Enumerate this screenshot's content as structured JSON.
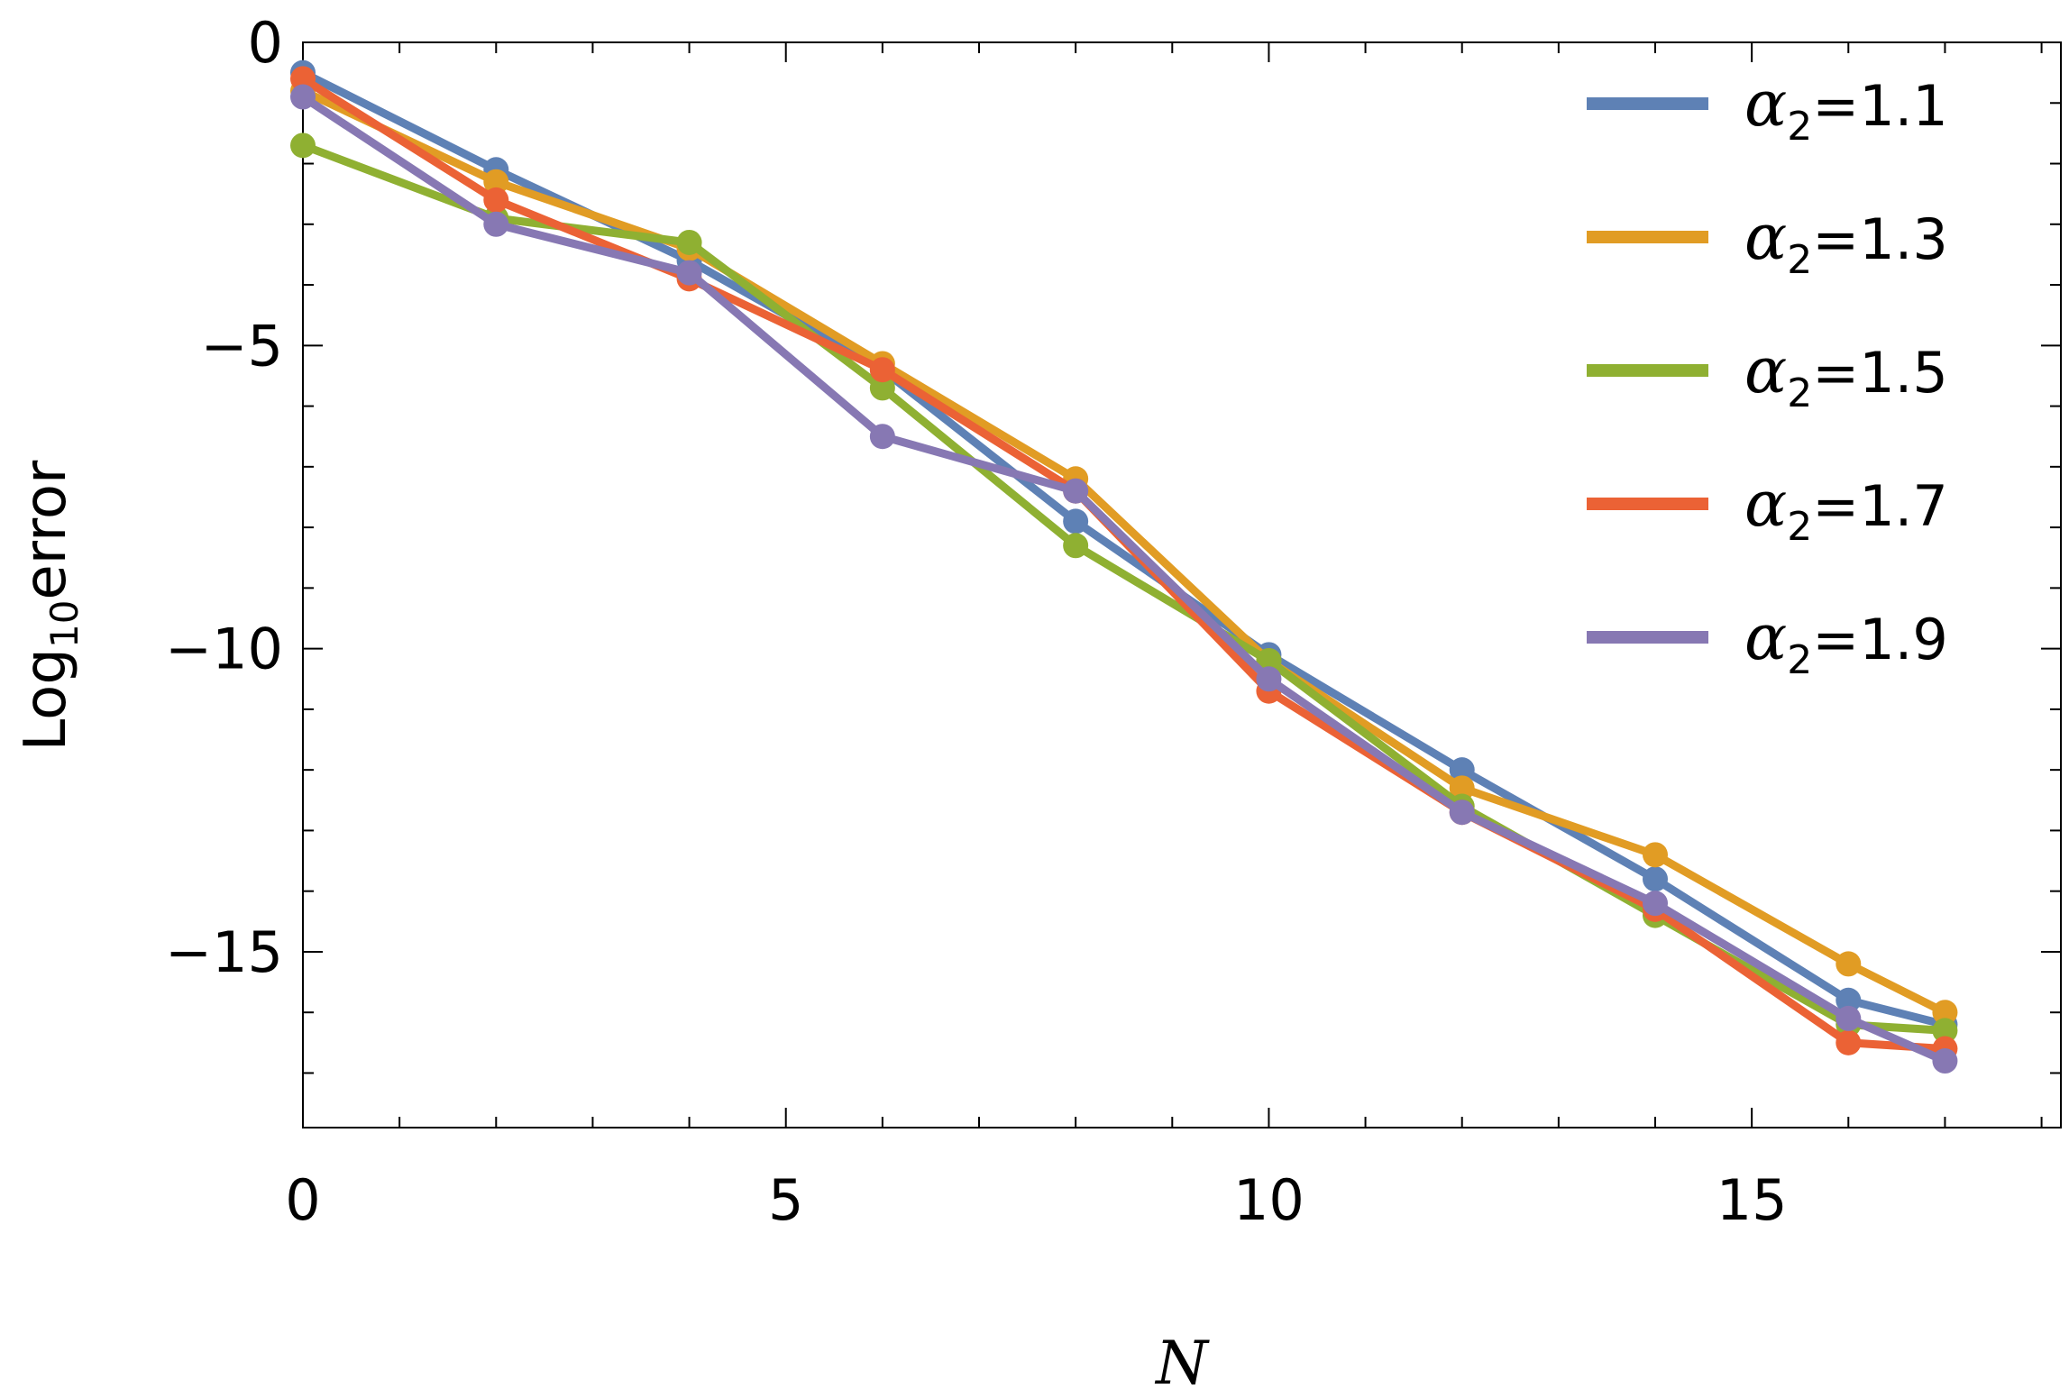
{
  "chart_data": {
    "type": "line",
    "title": "",
    "xlabel": "N",
    "ylabel": {
      "prefix": "Log",
      "sub": "10",
      "suffix": "error"
    },
    "xlim": [
      0,
      18.2
    ],
    "ylim": [
      -17.9,
      0
    ],
    "x_ticks": [
      0,
      5,
      10,
      15
    ],
    "y_ticks": [
      0,
      -5,
      -10,
      -15
    ],
    "grid": false,
    "legend_position": "top-right",
    "x": [
      0,
      2,
      4,
      6,
      8,
      10,
      12,
      14,
      16,
      17
    ],
    "series": [
      {
        "name": "α2=1.1",
        "symbol": "α",
        "sub": "2",
        "value_text": "=1.1",
        "color": "#5e81b5",
        "values": [
          -0.5,
          -2.1,
          -3.6,
          -5.4,
          -7.9,
          -10.1,
          -12.0,
          -13.8,
          -15.8,
          -16.2
        ]
      },
      {
        "name": "α2=1.3",
        "symbol": "α",
        "sub": "2",
        "value_text": "=1.3",
        "color": "#e19c24",
        "values": [
          -0.8,
          -2.3,
          -3.4,
          -5.3,
          -7.2,
          -10.2,
          -12.3,
          -13.4,
          -15.2,
          -16.0
        ]
      },
      {
        "name": "α2=1.5",
        "symbol": "α",
        "sub": "2",
        "value_text": "=1.5",
        "color": "#8fb032",
        "values": [
          -1.7,
          -2.9,
          -3.3,
          -5.7,
          -8.3,
          -10.2,
          -12.6,
          -14.4,
          -16.2,
          -16.3
        ]
      },
      {
        "name": "α2=1.7",
        "symbol": "α",
        "sub": "2",
        "value_text": "=1.7",
        "color": "#eb6235",
        "values": [
          -0.6,
          -2.6,
          -3.9,
          -5.4,
          -7.4,
          -10.7,
          -12.7,
          -14.3,
          -16.5,
          -16.6
        ]
      },
      {
        "name": "α2=1.9",
        "symbol": "α",
        "sub": "2",
        "value_text": "=1.9",
        "color": "#8778b3",
        "values": [
          -0.9,
          -3.0,
          -3.8,
          -6.5,
          -7.4,
          -10.5,
          -12.7,
          -14.2,
          -16.1,
          -16.8
        ]
      }
    ]
  }
}
